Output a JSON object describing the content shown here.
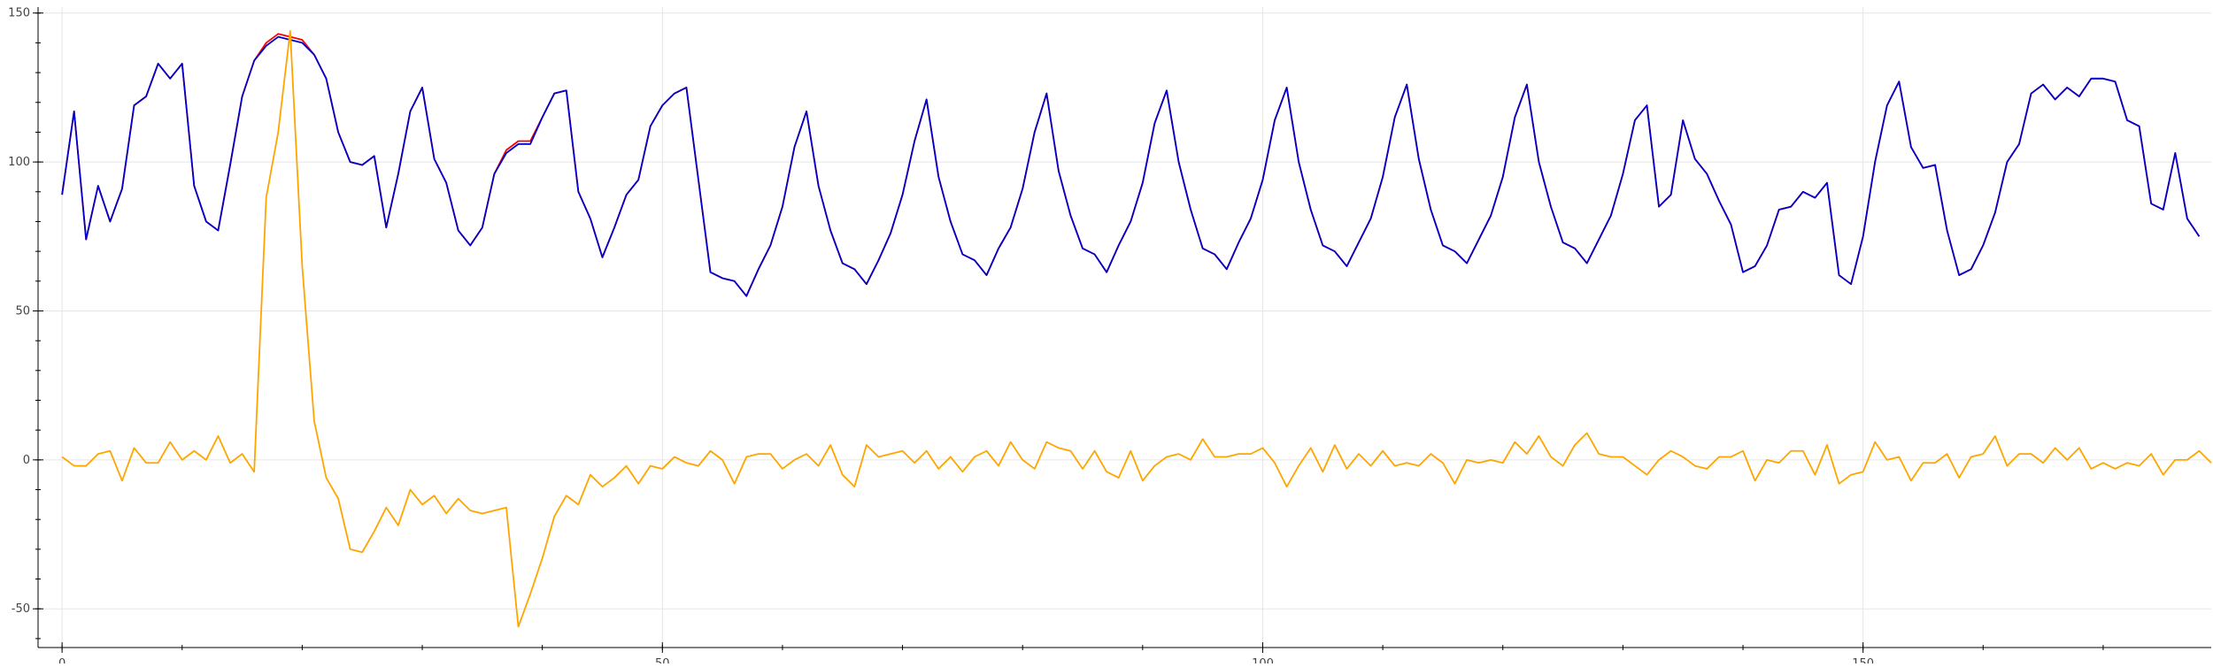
{
  "chart_data": {
    "type": "line",
    "xlim": [
      -2,
      179
    ],
    "ylim": [
      -63,
      152
    ],
    "x_ticks": [
      0,
      50,
      100,
      150
    ],
    "y_ticks": [
      -50,
      0,
      50,
      100,
      150
    ],
    "grid": true,
    "legend": "none",
    "series": [
      {
        "color": "#ff0000",
        "values": [
          89,
          117,
          74,
          92,
          80,
          91,
          119,
          122,
          133,
          128,
          133,
          92,
          80,
          77,
          99,
          122,
          134,
          140,
          143,
          142,
          141,
          136,
          128,
          110,
          100,
          99,
          102,
          78,
          96,
          117,
          125,
          101,
          93,
          77,
          72,
          78,
          96,
          104,
          107,
          107,
          115,
          123,
          124,
          90,
          81,
          68,
          78,
          89,
          94,
          112,
          119,
          123,
          125,
          94,
          63,
          61,
          60,
          55,
          64,
          72,
          85,
          105,
          117,
          92,
          77,
          66,
          64,
          59,
          67,
          76,
          89,
          107,
          121,
          95,
          80,
          69,
          67,
          62,
          71,
          78,
          91,
          110,
          123,
          97,
          82,
          71,
          69,
          63,
          72,
          80,
          93,
          113,
          124,
          100,
          84,
          71,
          69,
          64,
          73,
          81,
          94,
          114,
          125,
          100,
          84,
          72,
          70,
          65,
          73,
          81,
          95,
          115,
          126,
          101,
          84,
          72,
          70,
          66,
          74,
          82,
          95,
          115,
          126,
          100,
          85,
          73,
          71,
          66,
          74,
          82,
          96,
          114,
          119,
          85,
          89,
          114,
          101,
          96,
          87,
          79,
          63,
          65,
          72,
          84,
          85,
          90,
          88,
          93,
          62,
          59,
          75,
          100,
          119,
          127,
          105,
          98,
          99,
          77,
          62,
          64,
          72,
          83,
          100,
          106,
          123,
          126,
          121,
          125,
          122,
          128,
          128,
          127,
          114,
          112,
          86,
          84,
          103,
          81,
          75
        ]
      },
      {
        "color": "#0000cc",
        "values": [
          89,
          117,
          74,
          92,
          80,
          91,
          119,
          122,
          133,
          128,
          133,
          92,
          80,
          77,
          99,
          122,
          134,
          139,
          142,
          141,
          140,
          136,
          128,
          110,
          100,
          99,
          102,
          78,
          96,
          117,
          125,
          101,
          93,
          77,
          72,
          78,
          96,
          103,
          106,
          106,
          115,
          123,
          124,
          90,
          81,
          68,
          78,
          89,
          94,
          112,
          119,
          123,
          125,
          94,
          63,
          61,
          60,
          55,
          64,
          72,
          85,
          105,
          117,
          92,
          77,
          66,
          64,
          59,
          67,
          76,
          89,
          107,
          121,
          95,
          80,
          69,
          67,
          62,
          71,
          78,
          91,
          110,
          123,
          97,
          82,
          71,
          69,
          63,
          72,
          80,
          93,
          113,
          124,
          100,
          84,
          71,
          69,
          64,
          73,
          81,
          94,
          114,
          125,
          100,
          84,
          72,
          70,
          65,
          73,
          81,
          95,
          115,
          126,
          101,
          84,
          72,
          70,
          66,
          74,
          82,
          95,
          115,
          126,
          100,
          85,
          73,
          71,
          66,
          74,
          82,
          96,
          114,
          119,
          85,
          89,
          114,
          101,
          96,
          87,
          79,
          63,
          65,
          72,
          84,
          85,
          90,
          88,
          93,
          62,
          59,
          75,
          100,
          119,
          127,
          105,
          98,
          99,
          77,
          62,
          64,
          72,
          83,
          100,
          106,
          123,
          126,
          121,
          125,
          122,
          128,
          128,
          127,
          114,
          112,
          86,
          84,
          103,
          81,
          75
        ]
      },
      {
        "color": "#ffa500",
        "values": [
          1,
          -2,
          -2,
          2,
          3,
          -7,
          4,
          -1,
          -1,
          6,
          0,
          3,
          0,
          8,
          -1,
          2,
          -4,
          88,
          110,
          144,
          65,
          13,
          -6,
          -13,
          -30,
          -31,
          -24,
          -16,
          -22,
          -10,
          -15,
          -12,
          -18,
          -13,
          -17,
          -18,
          -17,
          -16,
          -56,
          -45,
          -33,
          -19,
          -12,
          -15,
          -5,
          -9,
          -6,
          -2,
          -8,
          -2,
          -3,
          1,
          -1,
          -2,
          3,
          0,
          -8,
          1,
          2,
          2,
          -3,
          0,
          2,
          -2,
          5,
          -5,
          -9,
          5,
          1,
          2,
          3,
          -1,
          3,
          -3,
          1,
          -4,
          1,
          3,
          -2,
          6,
          0,
          -3,
          6,
          4,
          3,
          -3,
          3,
          -4,
          -6,
          3,
          -7,
          -2,
          1,
          2,
          0,
          7,
          1,
          1,
          2,
          2,
          4,
          -1,
          -9,
          -2,
          4,
          -4,
          5,
          -3,
          2,
          -2,
          3,
          -2,
          -1,
          -2,
          2,
          -1,
          -8,
          0,
          -1,
          0,
          -1,
          6,
          2,
          8,
          1,
          -2,
          5,
          9,
          2,
          1,
          1,
          -2,
          -5,
          0,
          3,
          1,
          -2,
          -3,
          1,
          1,
          3,
          -7,
          0,
          -1,
          3,
          3,
          -5,
          5,
          -8,
          -5,
          -4,
          6,
          0,
          1,
          -7,
          -1,
          -1,
          2,
          -6,
          1,
          2,
          8,
          -2,
          2,
          2,
          -1,
          4,
          0,
          4,
          -3,
          -1,
          -3,
          -1,
          -2,
          2,
          -5,
          0,
          0,
          3,
          -1
        ]
      }
    ]
  }
}
